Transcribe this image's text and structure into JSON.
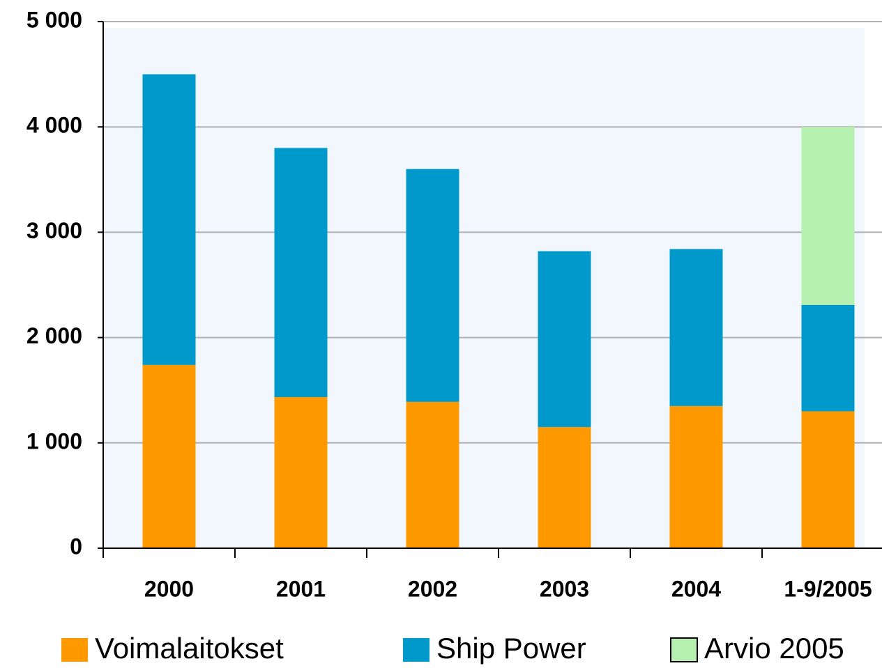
{
  "chart_data": {
    "type": "stacked-bar",
    "categories": [
      "2000",
      "2001",
      "2002",
      "2003",
      "2004",
      "1-9/2005"
    ],
    "series": [
      {
        "name": "Voimalaitokset",
        "color": "#ff9900",
        "values": [
          1740,
          1435,
          1390,
          1150,
          1350,
          1300
        ]
      },
      {
        "name": "Ship Power",
        "color": "#0099cc",
        "values": [
          2760,
          2365,
          2210,
          1670,
          1490,
          1010
        ]
      },
      {
        "name": "Arvio 2005",
        "color": "#b6f0b0",
        "values": [
          null,
          null,
          null,
          null,
          null,
          1690
        ]
      }
    ],
    "ylim": [
      0,
      5000
    ],
    "yticks": [
      0,
      {
        "value": 1000,
        "label": "1 000"
      },
      {
        "value": 2000,
        "label": "2 000"
      },
      {
        "value": 3000,
        "label": "3 000"
      },
      {
        "value": 4000,
        "label": "4 000"
      },
      {
        "value": 5000,
        "label": "5 000"
      }
    ],
    "grid": true
  }
}
